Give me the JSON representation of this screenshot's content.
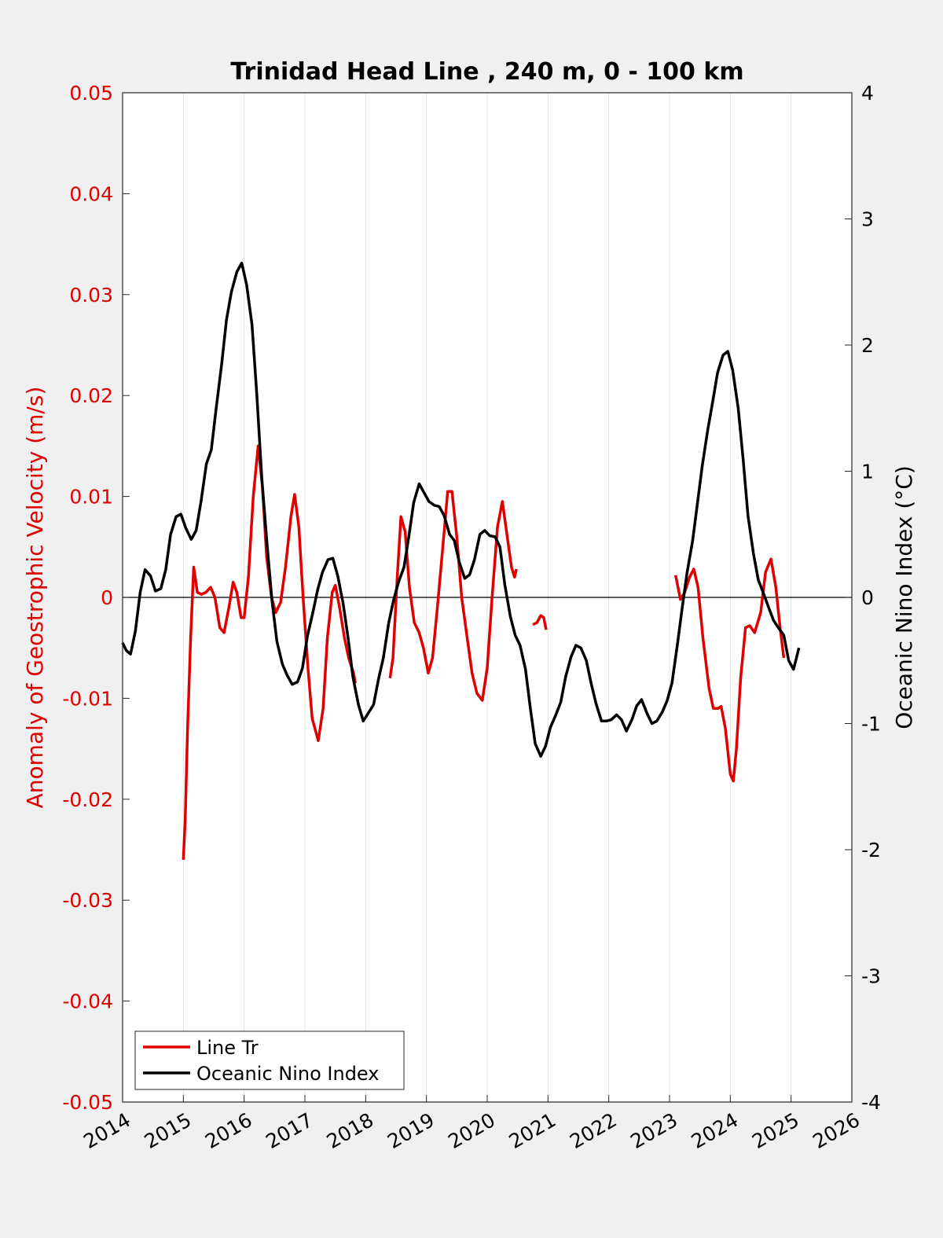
{
  "chart_data": {
    "type": "line",
    "title": "Trinidad Head Line , 240 m, 0 - 100 km",
    "xlabel": "",
    "ylabel_left": "Anomaly of Geostrophic Velocity (m/s)",
    "ylabel_right": "Oceanic Nino Index (°C)",
    "xlim": [
      2014,
      2026
    ],
    "ylim_left": [
      -0.05,
      0.05
    ],
    "ylim_right": [
      -4,
      4
    ],
    "x_ticks": [
      "2014",
      "2015",
      "2016",
      "2017",
      "2018",
      "2019",
      "2020",
      "2021",
      "2022",
      "2023",
      "2024",
      "2025",
      "2026"
    ],
    "y_ticks_left": [
      "-0.05",
      "-0.04",
      "-0.03",
      "-0.02",
      "-0.01",
      "0",
      "0.01",
      "0.02",
      "0.03",
      "0.04",
      "0.05"
    ],
    "y_ticks_right": [
      "-4",
      "-3",
      "-2",
      "-1",
      "0",
      "1",
      "2",
      "3",
      "4"
    ],
    "grid": "vertical",
    "zero_line": true,
    "legend_position": "bottom-left",
    "colors": {
      "line_tr": "#e00000",
      "oni": "#000000",
      "left_axis": "#e00000",
      "right_axis": "#000000"
    },
    "series": [
      {
        "name": "Line Tr",
        "axis": "left",
        "color": "#e00000",
        "segments": [
          [
            [
              2015.0,
              -0.026
            ],
            [
              2015.03,
              -0.022
            ],
            [
              2015.07,
              -0.013
            ],
            [
              2015.12,
              -0.004
            ],
            [
              2015.17,
              0.003
            ],
            [
              2015.23,
              0.0005
            ],
            [
              2015.3,
              0.0003
            ],
            [
              2015.37,
              0.0005
            ],
            [
              2015.45,
              0.001
            ],
            [
              2015.52,
              0.0
            ],
            [
              2015.6,
              -0.003
            ],
            [
              2015.67,
              -0.0035
            ],
            [
              2015.75,
              -0.001
            ],
            [
              2015.82,
              0.0015
            ],
            [
              2015.88,
              0.0005
            ],
            [
              2015.95,
              -0.002
            ],
            [
              2016.0,
              -0.002
            ],
            [
              2016.07,
              0.002
            ],
            [
              2016.15,
              0.01
            ],
            [
              2016.23,
              0.015
            ],
            [
              2016.3,
              0.011
            ],
            [
              2016.37,
              0.004
            ],
            [
              2016.45,
              0.0
            ],
            [
              2016.52,
              -0.0015
            ],
            [
              2016.6,
              -0.0005
            ],
            [
              2016.68,
              0.003
            ],
            [
              2016.77,
              0.008
            ],
            [
              2016.83,
              0.0102
            ],
            [
              2016.9,
              0.007
            ],
            [
              2016.97,
              0.0
            ],
            [
              2017.05,
              -0.007
            ],
            [
              2017.12,
              -0.012
            ],
            [
              2017.22,
              -0.0142
            ],
            [
              2017.3,
              -0.011
            ],
            [
              2017.37,
              -0.004
            ],
            [
              2017.45,
              0.0005
            ],
            [
              2017.5,
              0.0012
            ],
            [
              2017.57,
              -0.001
            ],
            [
              2017.65,
              -0.004
            ],
            [
              2017.72,
              -0.006
            ],
            [
              2017.8,
              -0.0075
            ],
            [
              2017.83,
              -0.0085
            ]
          ],
          [
            [
              2018.4,
              -0.008
            ],
            [
              2018.45,
              -0.006
            ],
            [
              2018.52,
              0.002
            ],
            [
              2018.58,
              0.008
            ],
            [
              2018.65,
              0.0065
            ],
            [
              2018.72,
              0.001
            ],
            [
              2018.8,
              -0.0025
            ],
            [
              2018.88,
              -0.0035
            ],
            [
              2018.95,
              -0.005
            ],
            [
              2019.03,
              -0.0075
            ],
            [
              2019.1,
              -0.006
            ],
            [
              2019.18,
              -0.001
            ],
            [
              2019.27,
              0.005
            ],
            [
              2019.35,
              0.0105
            ],
            [
              2019.42,
              0.0105
            ],
            [
              2019.5,
              0.006
            ],
            [
              2019.58,
              0.0
            ],
            [
              2019.67,
              -0.004
            ],
            [
              2019.75,
              -0.0075
            ],
            [
              2019.83,
              -0.0095
            ],
            [
              2019.92,
              -0.0102
            ],
            [
              2020.0,
              -0.007
            ],
            [
              2020.08,
              0.0
            ],
            [
              2020.17,
              0.007
            ],
            [
              2020.25,
              0.0095
            ],
            [
              2020.33,
              0.006
            ],
            [
              2020.4,
              0.003
            ],
            [
              2020.45,
              0.002
            ],
            [
              2020.48,
              0.0028
            ]
          ],
          [
            [
              2020.75,
              -0.0027
            ],
            [
              2020.82,
              -0.0025
            ],
            [
              2020.88,
              -0.0018
            ],
            [
              2020.93,
              -0.002
            ],
            [
              2020.97,
              -0.0032
            ]
          ],
          [
            [
              2023.1,
              0.0022
            ],
            [
              2023.18,
              -0.0002
            ],
            [
              2023.25,
              0.0005
            ],
            [
              2023.33,
              0.002
            ],
            [
              2023.4,
              0.0028
            ],
            [
              2023.47,
              0.001
            ],
            [
              2023.55,
              -0.004
            ],
            [
              2023.65,
              -0.009
            ],
            [
              2023.72,
              -0.011
            ],
            [
              2023.8,
              -0.011
            ],
            [
              2023.85,
              -0.0108
            ],
            [
              2023.92,
              -0.013
            ],
            [
              2024.0,
              -0.0175
            ],
            [
              2024.05,
              -0.0182
            ],
            [
              2024.1,
              -0.015
            ],
            [
              2024.17,
              -0.008
            ],
            [
              2024.25,
              -0.003
            ],
            [
              2024.32,
              -0.0028
            ],
            [
              2024.4,
              -0.0035
            ],
            [
              2024.5,
              -0.0015
            ],
            [
              2024.58,
              0.0025
            ],
            [
              2024.67,
              0.0038
            ],
            [
              2024.75,
              0.001
            ],
            [
              2024.82,
              -0.003
            ],
            [
              2024.88,
              -0.006
            ]
          ]
        ]
      },
      {
        "name": "Oceanic Nino Index",
        "axis": "right",
        "color": "#000000",
        "points": [
          [
            2014.0,
            -0.36
          ],
          [
            2014.06,
            -0.42
          ],
          [
            2014.13,
            -0.45
          ],
          [
            2014.21,
            -0.27
          ],
          [
            2014.29,
            0.04
          ],
          [
            2014.37,
            0.22
          ],
          [
            2014.46,
            0.17
          ],
          [
            2014.54,
            0.05
          ],
          [
            2014.63,
            0.07
          ],
          [
            2014.71,
            0.22
          ],
          [
            2014.79,
            0.5
          ],
          [
            2014.88,
            0.64
          ],
          [
            2014.96,
            0.66
          ],
          [
            2015.04,
            0.55
          ],
          [
            2015.13,
            0.46
          ],
          [
            2015.21,
            0.53
          ],
          [
            2015.29,
            0.76
          ],
          [
            2015.38,
            1.06
          ],
          [
            2015.46,
            1.17
          ],
          [
            2015.54,
            1.5
          ],
          [
            2015.63,
            1.85
          ],
          [
            2015.71,
            2.2
          ],
          [
            2015.79,
            2.42
          ],
          [
            2015.88,
            2.58
          ],
          [
            2015.96,
            2.65
          ],
          [
            2016.04,
            2.48
          ],
          [
            2016.13,
            2.16
          ],
          [
            2016.21,
            1.6
          ],
          [
            2016.29,
            0.95
          ],
          [
            2016.38,
            0.4
          ],
          [
            2016.46,
            -0.03
          ],
          [
            2016.54,
            -0.35
          ],
          [
            2016.63,
            -0.53
          ],
          [
            2016.71,
            -0.62
          ],
          [
            2016.79,
            -0.69
          ],
          [
            2016.88,
            -0.67
          ],
          [
            2016.96,
            -0.56
          ],
          [
            2017.04,
            -0.31
          ],
          [
            2017.13,
            -0.12
          ],
          [
            2017.21,
            0.06
          ],
          [
            2017.29,
            0.2
          ],
          [
            2017.38,
            0.3
          ],
          [
            2017.46,
            0.31
          ],
          [
            2017.54,
            0.17
          ],
          [
            2017.63,
            -0.05
          ],
          [
            2017.71,
            -0.32
          ],
          [
            2017.79,
            -0.63
          ],
          [
            2017.88,
            -0.85
          ],
          [
            2017.96,
            -0.98
          ],
          [
            2018.04,
            -0.92
          ],
          [
            2018.13,
            -0.85
          ],
          [
            2018.21,
            -0.65
          ],
          [
            2018.29,
            -0.48
          ],
          [
            2018.38,
            -0.2
          ],
          [
            2018.46,
            -0.02
          ],
          [
            2018.54,
            0.12
          ],
          [
            2018.63,
            0.24
          ],
          [
            2018.71,
            0.48
          ],
          [
            2018.79,
            0.75
          ],
          [
            2018.88,
            0.9
          ],
          [
            2018.96,
            0.83
          ],
          [
            2019.04,
            0.76
          ],
          [
            2019.13,
            0.73
          ],
          [
            2019.21,
            0.72
          ],
          [
            2019.29,
            0.65
          ],
          [
            2019.38,
            0.5
          ],
          [
            2019.46,
            0.45
          ],
          [
            2019.54,
            0.28
          ],
          [
            2019.63,
            0.15
          ],
          [
            2019.71,
            0.18
          ],
          [
            2019.79,
            0.3
          ],
          [
            2019.88,
            0.5
          ],
          [
            2019.96,
            0.53
          ],
          [
            2020.04,
            0.49
          ],
          [
            2020.13,
            0.48
          ],
          [
            2020.21,
            0.4
          ],
          [
            2020.29,
            0.1
          ],
          [
            2020.38,
            -0.15
          ],
          [
            2020.46,
            -0.3
          ],
          [
            2020.54,
            -0.38
          ],
          [
            2020.63,
            -0.57
          ],
          [
            2020.71,
            -0.88
          ],
          [
            2020.79,
            -1.16
          ],
          [
            2020.88,
            -1.26
          ],
          [
            2020.96,
            -1.18
          ],
          [
            2021.04,
            -1.03
          ],
          [
            2021.13,
            -0.93
          ],
          [
            2021.21,
            -0.83
          ],
          [
            2021.29,
            -0.63
          ],
          [
            2021.38,
            -0.47
          ],
          [
            2021.46,
            -0.38
          ],
          [
            2021.54,
            -0.4
          ],
          [
            2021.63,
            -0.5
          ],
          [
            2021.71,
            -0.68
          ],
          [
            2021.79,
            -0.84
          ],
          [
            2021.88,
            -0.98
          ],
          [
            2021.96,
            -0.98
          ],
          [
            2022.04,
            -0.97
          ],
          [
            2022.13,
            -0.93
          ],
          [
            2022.21,
            -0.97
          ],
          [
            2022.29,
            -1.06
          ],
          [
            2022.38,
            -0.97
          ],
          [
            2022.46,
            -0.86
          ],
          [
            2022.54,
            -0.81
          ],
          [
            2022.63,
            -0.92
          ],
          [
            2022.71,
            -1.0
          ],
          [
            2022.79,
            -0.98
          ],
          [
            2022.88,
            -0.91
          ],
          [
            2022.96,
            -0.82
          ],
          [
            2023.04,
            -0.68
          ],
          [
            2023.13,
            -0.37
          ],
          [
            2023.21,
            -0.08
          ],
          [
            2023.29,
            0.2
          ],
          [
            2023.38,
            0.45
          ],
          [
            2023.46,
            0.75
          ],
          [
            2023.54,
            1.05
          ],
          [
            2023.63,
            1.33
          ],
          [
            2023.71,
            1.55
          ],
          [
            2023.79,
            1.78
          ],
          [
            2023.88,
            1.92
          ],
          [
            2023.96,
            1.95
          ],
          [
            2024.04,
            1.8
          ],
          [
            2024.13,
            1.5
          ],
          [
            2024.21,
            1.1
          ],
          [
            2024.29,
            0.65
          ],
          [
            2024.38,
            0.35
          ],
          [
            2024.46,
            0.14
          ],
          [
            2024.54,
            0.04
          ],
          [
            2024.63,
            -0.08
          ],
          [
            2024.71,
            -0.18
          ],
          [
            2024.79,
            -0.24
          ],
          [
            2024.88,
            -0.3
          ],
          [
            2024.96,
            -0.5
          ],
          [
            2025.04,
            -0.57
          ],
          [
            2025.13,
            -0.4
          ]
        ]
      }
    ]
  },
  "legend": {
    "items": [
      {
        "label": "Line Tr",
        "color": "#e00000"
      },
      {
        "label": "Oceanic Nino Index",
        "color": "#000000"
      }
    ]
  }
}
